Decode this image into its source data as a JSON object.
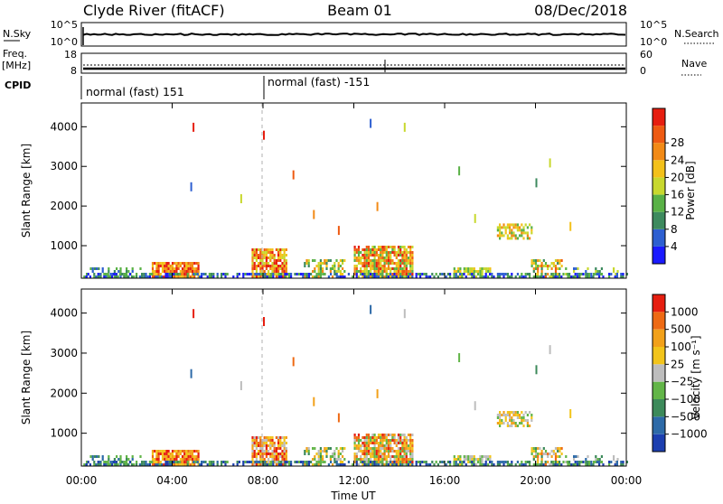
{
  "header": {
    "station": "Clyde River (fitACF)",
    "beam": "Beam 01",
    "date": "08/Dec/2018"
  },
  "top_panels": {
    "nsky_label": "N.Sky",
    "nsky_ticks": [
      "10^5",
      "10^0"
    ],
    "nsearch_label": "N.Search",
    "nsearch_ticks": [
      "10^5",
      "10^0"
    ],
    "freq_label_1": "Freq.",
    "freq_label_2": "[MHz]",
    "freq_ticks": [
      "18",
      "8"
    ],
    "nave_label": "Nave",
    "nave_ticks": [
      "60",
      "0"
    ],
    "cpid_label": "CPID",
    "cpid_segments": [
      "normal (fast) 151",
      "normal (fast) -151"
    ]
  },
  "chart_data": [
    {
      "type": "heatmap",
      "name": "power",
      "ylabel": "Slant Range [km]",
      "xlabel": "",
      "yticks": [
        "1000",
        "2000",
        "3000",
        "4000"
      ],
      "xlim_hours": [
        0,
        24
      ],
      "ylim_km": [
        180,
        4600
      ],
      "colorbar_label": "Power [dB]",
      "colorbar_ticks": [
        "4",
        "8",
        "12",
        "16",
        "20",
        "24",
        "28"
      ],
      "colorbar_colors": [
        "#1a1aff",
        "#2d5fd1",
        "#3d8a5e",
        "#59b146",
        "#c8d82e",
        "#f3c11a",
        "#f28a16",
        "#ee5a12",
        "#e61e10"
      ]
    },
    {
      "type": "heatmap",
      "name": "velocity",
      "ylabel": "Slant Range [km]",
      "xlabel": "Time UT",
      "xticks": [
        "00:00",
        "04:00",
        "08:00",
        "12:00",
        "16:00",
        "20:00",
        "00:00"
      ],
      "yticks": [
        "1000",
        "2000",
        "3000",
        "4000"
      ],
      "xlim_hours": [
        0,
        24
      ],
      "ylim_km": [
        180,
        4600
      ],
      "colorbar_label": "Velocity [m s⁻¹]",
      "colorbar_ticks": [
        "1000",
        "500",
        "100",
        "25",
        "−25",
        "−100",
        "−500",
        "−1000"
      ],
      "colorbar_colors": [
        "#1c3fb0",
        "#2d6aa8",
        "#3c8a5a",
        "#62b548",
        "#bdbdbd",
        "#f2c41b",
        "#f2a11a",
        "#ee6a14",
        "#e61e10"
      ]
    }
  ]
}
